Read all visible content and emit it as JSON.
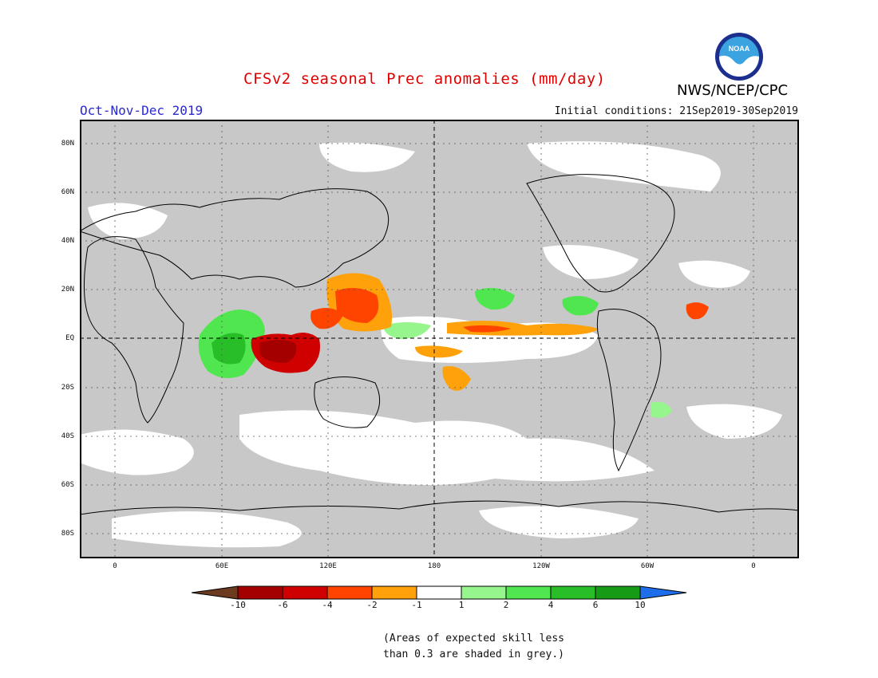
{
  "header": {
    "title": "CFSv2 seasonal Prec anomalies (mm/day)",
    "period": "Oct-Nov-Dec 2019",
    "initial_conditions": "Initial conditions: 21Sep2019-30Sep2019",
    "agency": "NWS/NCEP/CPC",
    "logo_text": "NOAA"
  },
  "map": {
    "projection": "equirectangular, Pacific-centered",
    "lat_labels": [
      "80N",
      "60N",
      "40N",
      "20N",
      "EQ",
      "20S",
      "40S",
      "60S",
      "80S"
    ],
    "lon_labels": [
      "0",
      "60E",
      "120E",
      "180",
      "120W",
      "60W",
      "0"
    ],
    "background_color": "#c8c8c8",
    "coast_color": "#000000"
  },
  "colorbar": {
    "labels": [
      "-10",
      "-6",
      "-4",
      "-2",
      "-1",
      "1",
      "2",
      "4",
      "6",
      "10"
    ],
    "colors": [
      "#6b3a1f",
      "#a50000",
      "#cf0000",
      "#ff4400",
      "#ffa10a",
      "#ffffff",
      "#96f58c",
      "#50e650",
      "#28be28",
      "#169b16",
      "#1e6eeb"
    ]
  },
  "footnote": {
    "line1": "(Areas of expected skill less",
    "line2": "than 0.3 are shaded in grey.)"
  }
}
